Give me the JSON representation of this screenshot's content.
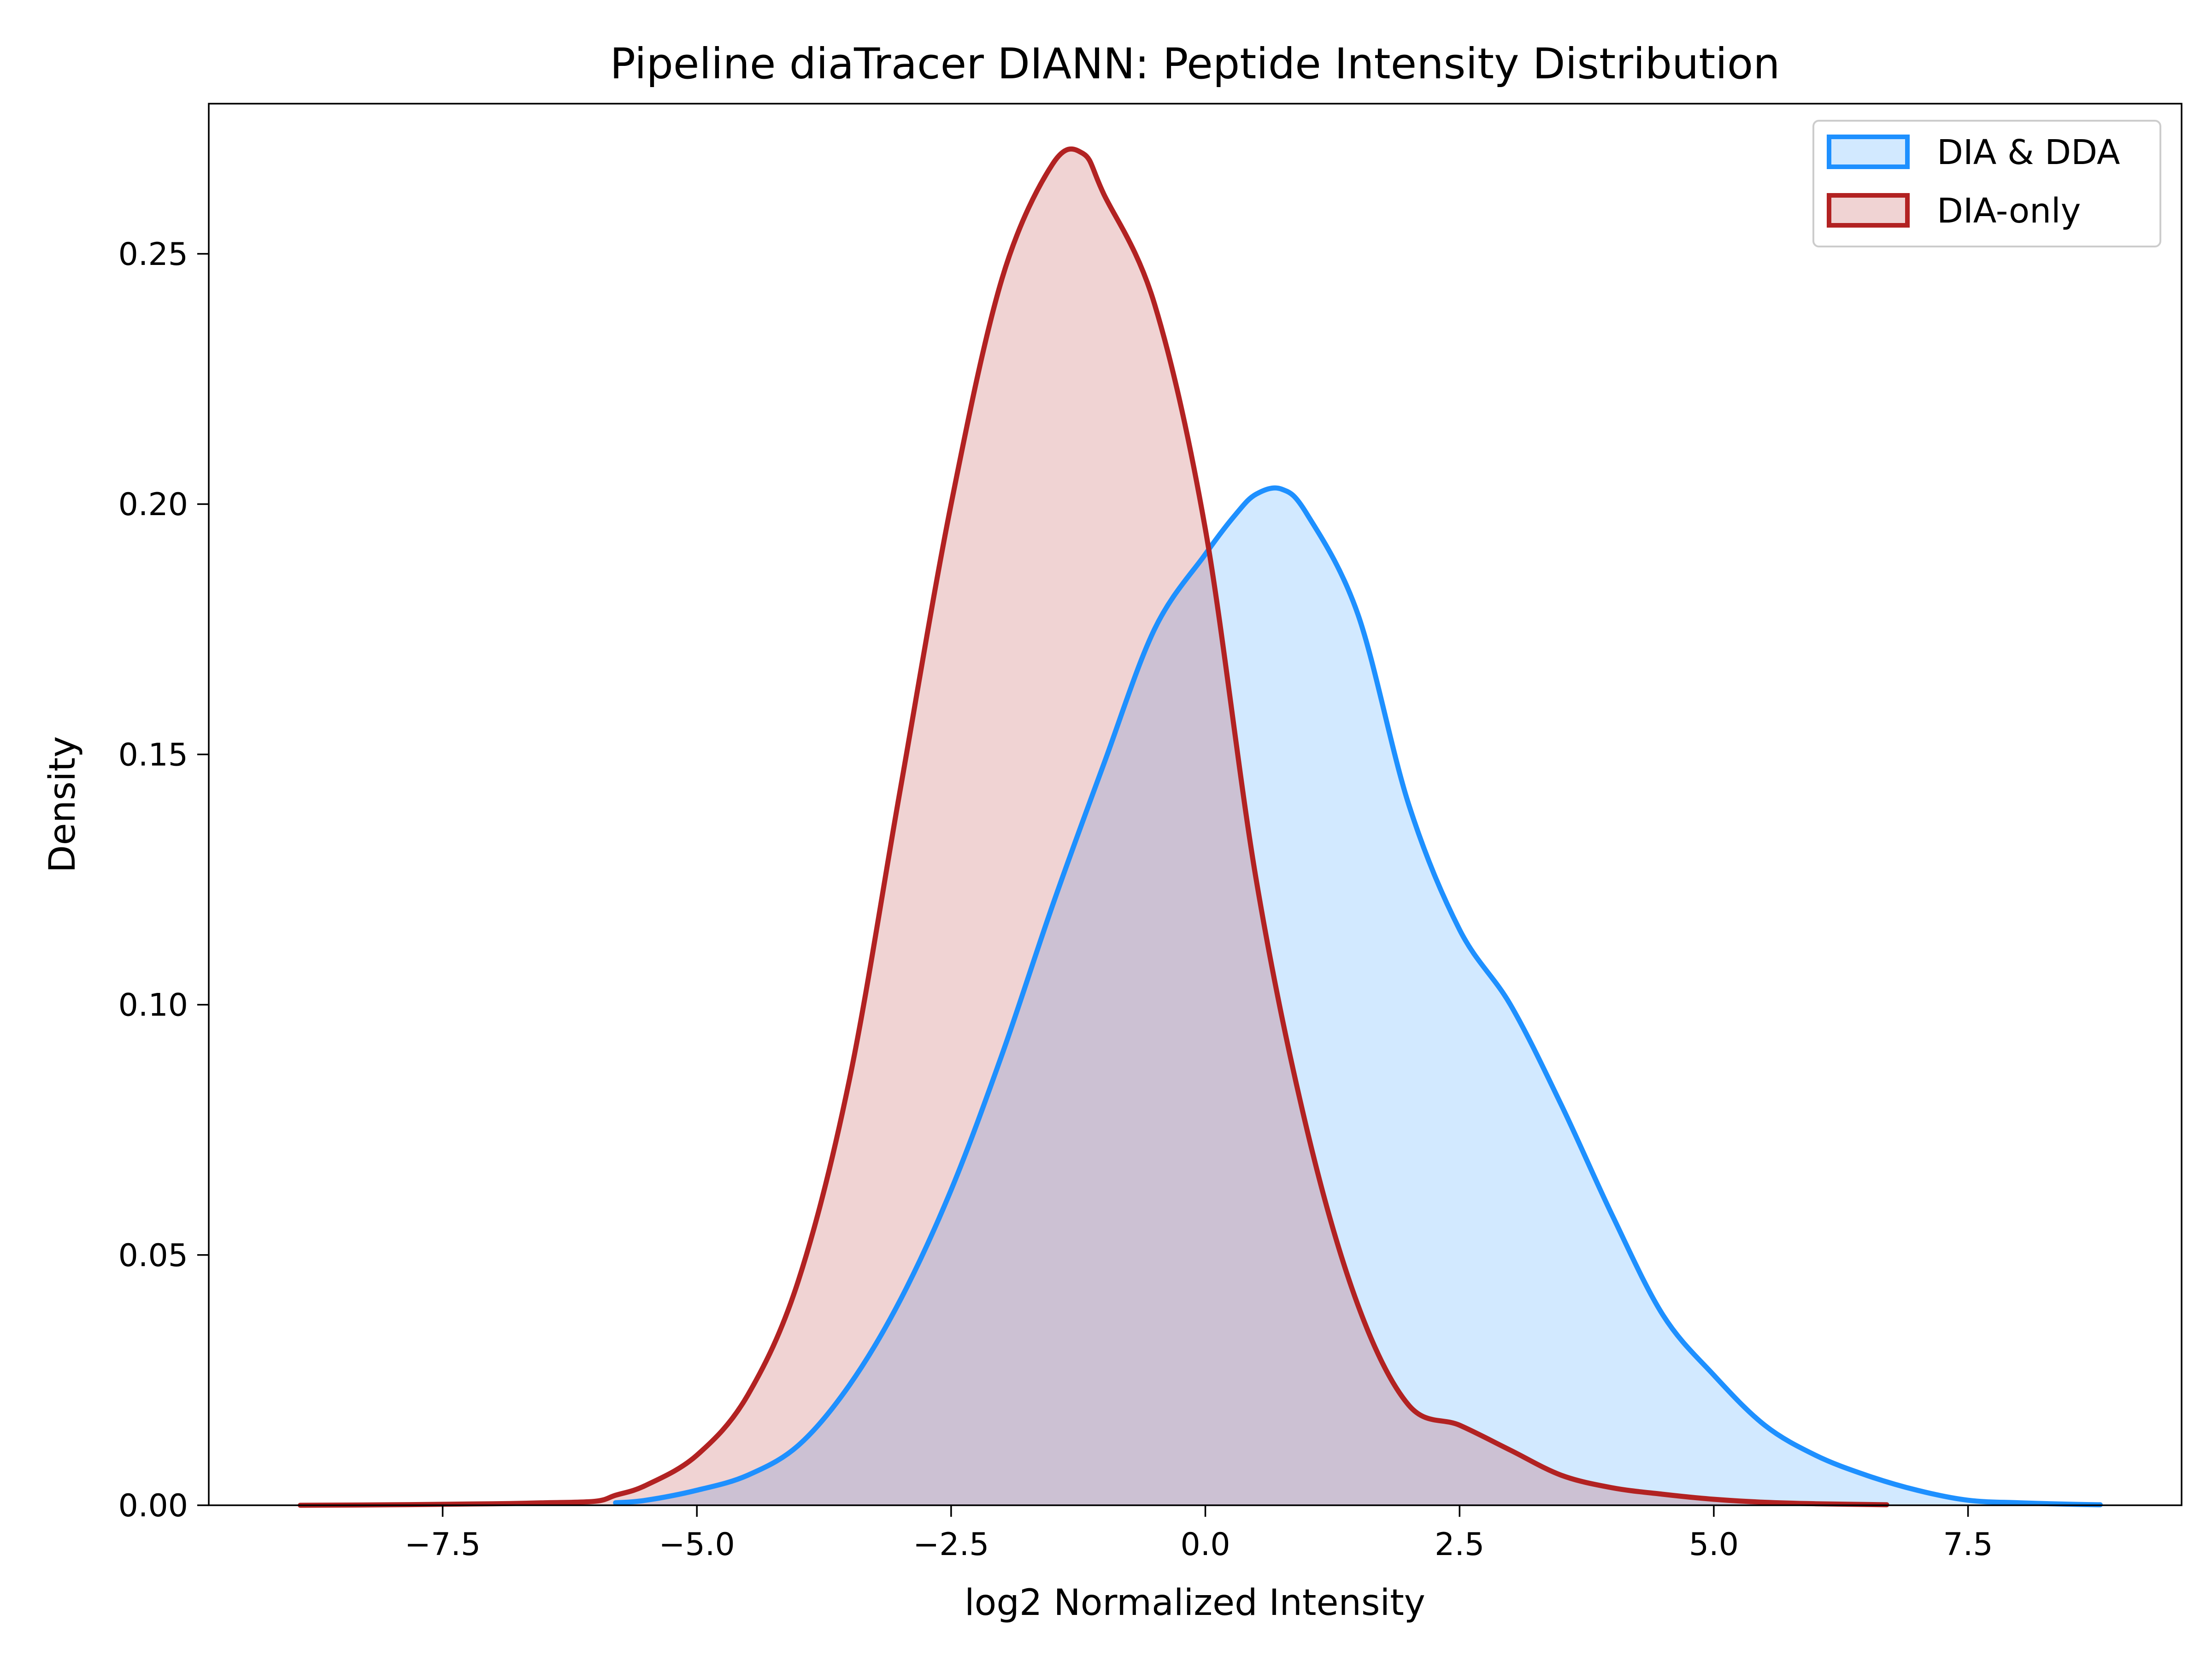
{
  "chart_data": {
    "type": "area",
    "title": "Pipeline diaTracer DIANN: Peptide Intensity Distribution",
    "xlabel": "log2 Normalized Intensity",
    "ylabel": "Density",
    "xlim": [
      -9.8,
      9.6
    ],
    "ylim": [
      0,
      0.28
    ],
    "xticks": [
      -7.5,
      -5.0,
      -2.5,
      0.0,
      2.5,
      5.0,
      7.5
    ],
    "xtick_labels": [
      "−7.5",
      "−5.0",
      "−2.5",
      "0.0",
      "2.5",
      "5.0",
      "7.5"
    ],
    "yticks": [
      0.0,
      0.05,
      0.1,
      0.15,
      0.2,
      0.25
    ],
    "ytick_labels": [
      "0.00",
      "0.05",
      "0.10",
      "0.15",
      "0.20",
      "0.25"
    ],
    "grid": false,
    "legend_position": "top-right",
    "series": [
      {
        "name": "DIA & DDA",
        "color": "#1E90FF",
        "fill_color": "#1E90FF",
        "fill_opacity": 0.2,
        "x": [
          -5.8,
          -5.5,
          -5.0,
          -4.5,
          -4.0,
          -3.5,
          -3.0,
          -2.5,
          -2.0,
          -1.5,
          -1.0,
          -0.5,
          0.0,
          0.3,
          0.5,
          0.75,
          1.0,
          1.5,
          2.0,
          2.5,
          3.0,
          3.5,
          4.0,
          4.5,
          5.0,
          5.5,
          6.0,
          6.5,
          7.0,
          7.5,
          8.0,
          8.5,
          8.8
        ],
        "y": [
          0.0005,
          0.001,
          0.003,
          0.006,
          0.012,
          0.024,
          0.041,
          0.063,
          0.09,
          0.12,
          0.148,
          0.175,
          0.19,
          0.198,
          0.202,
          0.203,
          0.198,
          0.178,
          0.14,
          0.115,
          0.1,
          0.08,
          0.058,
          0.038,
          0.026,
          0.016,
          0.01,
          0.006,
          0.003,
          0.001,
          0.0005,
          0.0002,
          0.0001
        ]
      },
      {
        "name": "DIA-only",
        "color": "#B22222",
        "fill_color": "#B22222",
        "fill_opacity": 0.2,
        "x": [
          -8.9,
          -8.0,
          -7.0,
          -6.5,
          -6.0,
          -5.8,
          -5.5,
          -5.0,
          -4.5,
          -4.0,
          -3.5,
          -3.0,
          -2.5,
          -2.0,
          -1.5,
          -1.2,
          -1.0,
          -0.5,
          0.0,
          0.5,
          1.0,
          1.5,
          2.0,
          2.5,
          3.0,
          3.5,
          4.0,
          4.5,
          5.0,
          5.5,
          6.0,
          6.7
        ],
        "y": [
          0.0,
          0.0001,
          0.0003,
          0.0005,
          0.0008,
          0.002,
          0.004,
          0.01,
          0.022,
          0.045,
          0.085,
          0.143,
          0.2,
          0.245,
          0.268,
          0.27,
          0.262,
          0.24,
          0.195,
          0.125,
          0.075,
          0.04,
          0.02,
          0.016,
          0.011,
          0.006,
          0.0035,
          0.0022,
          0.0012,
          0.0006,
          0.0003,
          0.0001
        ]
      }
    ]
  }
}
